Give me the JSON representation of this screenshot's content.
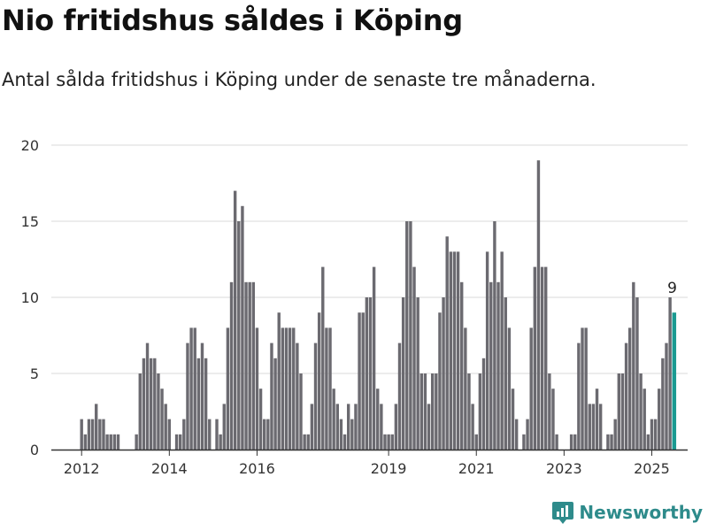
{
  "title": "Nio fritidshus såldes i Köping",
  "subtitle": "Antal sålda fritidshus i Köping under de senaste tre månaderna.",
  "brand": {
    "name": "Newsworthy",
    "icon": "newsworthy-logo-icon"
  },
  "colors": {
    "bar": "#6b6a70",
    "highlight": "#1a9a91",
    "grid": "#d9d9d9",
    "axis": "#333333",
    "brand": "#2e8b8b"
  },
  "chart_data": {
    "type": "bar",
    "ylim": [
      0,
      20
    ],
    "yticks": [
      0,
      5,
      10,
      15,
      20
    ],
    "grid": true,
    "xticks": [
      {
        "label": "2012",
        "index": 0
      },
      {
        "label": "2014",
        "index": 24
      },
      {
        "label": "2016",
        "index": 48
      },
      {
        "label": "2019",
        "index": 84
      },
      {
        "label": "2021",
        "index": 108
      },
      {
        "label": "2023",
        "index": 132
      },
      {
        "label": "2025",
        "index": 156
      }
    ],
    "highlight_label": "9",
    "values": [
      2,
      1,
      2,
      2,
      3,
      2,
      2,
      1,
      1,
      1,
      1,
      0,
      0,
      0,
      0,
      1,
      5,
      6,
      7,
      6,
      6,
      5,
      4,
      3,
      2,
      0,
      1,
      1,
      2,
      7,
      8,
      8,
      6,
      7,
      6,
      2,
      0,
      2,
      1,
      3,
      8,
      11,
      17,
      15,
      16,
      11,
      11,
      11,
      8,
      4,
      2,
      2,
      7,
      6,
      9,
      8,
      8,
      8,
      8,
      7,
      5,
      1,
      1,
      3,
      7,
      9,
      12,
      8,
      8,
      4,
      3,
      2,
      1,
      3,
      2,
      3,
      9,
      9,
      10,
      10,
      12,
      4,
      3,
      1,
      1,
      1,
      3,
      7,
      10,
      15,
      15,
      12,
      10,
      5,
      5,
      3,
      5,
      5,
      9,
      10,
      14,
      13,
      13,
      13,
      11,
      8,
      5,
      3,
      1,
      5,
      6,
      13,
      11,
      15,
      11,
      13,
      10,
      8,
      4,
      2,
      0,
      1,
      2,
      8,
      12,
      19,
      12,
      12,
      5,
      4,
      1,
      0,
      0,
      0,
      1,
      1,
      7,
      8,
      8,
      3,
      3,
      4,
      3,
      0,
      1,
      1,
      2,
      5,
      5,
      7,
      8,
      11,
      10,
      5,
      4,
      1,
      2,
      2,
      4,
      6,
      7,
      10,
      9
    ]
  }
}
